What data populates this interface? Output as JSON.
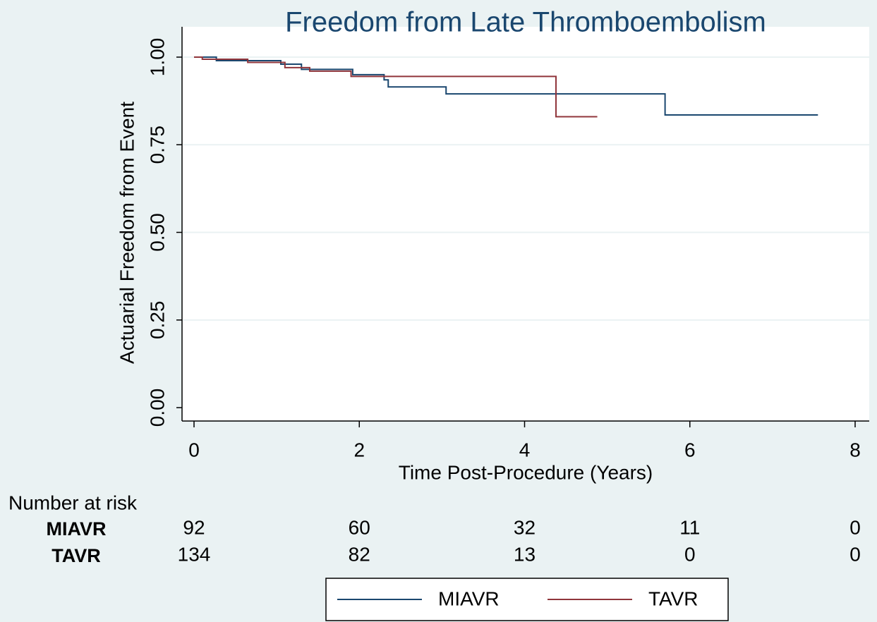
{
  "chart_data": {
    "type": "step",
    "title": "Freedom from Late Thromboembolism",
    "xlabel": "Time Post-Procedure (Years)",
    "ylabel": "Actuarial Freedom from Event",
    "xlim": [
      0,
      8
    ],
    "xticks": [
      0,
      2,
      4,
      6,
      8
    ],
    "ylim": [
      0,
      1
    ],
    "yticks": [
      {
        "value": 0,
        "label": "0.00"
      },
      {
        "value": 0.25,
        "label": "0.25"
      },
      {
        "value": 0.5,
        "label": "0.50"
      },
      {
        "value": 0.75,
        "label": "0.75"
      },
      {
        "value": 1,
        "label": "1.00"
      }
    ],
    "grid": true,
    "series": [
      {
        "name": "MIAVR",
        "color": "#1a476f",
        "x": [
          0,
          0.27,
          1.05,
          1.3,
          1.92,
          2.3,
          2.35,
          3.05,
          5.7,
          7.55
        ],
        "values": [
          1.0,
          0.99,
          0.98,
          0.965,
          0.95,
          0.935,
          0.915,
          0.895,
          0.835,
          0.835
        ]
      },
      {
        "name": "TAVR",
        "color": "#90353b",
        "x": [
          0,
          0.1,
          0.65,
          1.1,
          1.4,
          1.9,
          4.38,
          4.88
        ],
        "values": [
          1.0,
          0.994,
          0.985,
          0.97,
          0.96,
          0.945,
          0.83,
          0.83
        ]
      }
    ],
    "risk_table": {
      "title": "Number at risk",
      "rows": [
        {
          "name": "MIAVR",
          "values": [
            92,
            60,
            32,
            11,
            0
          ]
        },
        {
          "name": "TAVR",
          "values": [
            134,
            82,
            13,
            0,
            0
          ]
        }
      ]
    }
  }
}
